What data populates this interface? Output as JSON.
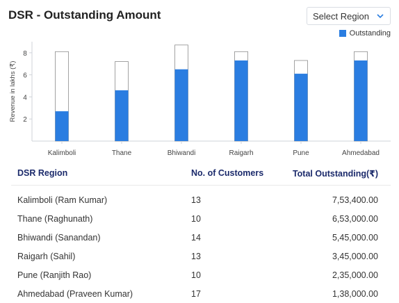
{
  "header": {
    "title": "DSR - Outstanding Amount"
  },
  "region_select": {
    "label": "Select Region"
  },
  "legend": {
    "label": "Outstanding",
    "color": "#2a7de1"
  },
  "chart_data": {
    "type": "bar",
    "ylabel": "Revenue in lakhs (₹)",
    "ylim": [
      0,
      9
    ],
    "yticks": [
      2,
      4,
      6,
      8
    ],
    "categories": [
      "Kalimboli",
      "Thane",
      "Bhiwandi",
      "Raigarh",
      "Pune",
      "Ahmedabad"
    ],
    "series": [
      {
        "name": "Outstanding",
        "color": "#2a7de1",
        "values": [
          2.7,
          4.6,
          6.5,
          7.3,
          6.1,
          7.3
        ]
      },
      {
        "color": "#ffffff",
        "values": [
          8.1,
          7.2,
          8.7,
          8.1,
          7.3,
          8.1
        ]
      }
    ]
  },
  "table": {
    "headers": [
      "DSR Region",
      "No. of Customers",
      "Total Outstanding(₹)"
    ],
    "rows": [
      [
        "Kalimboli (Ram Kumar)",
        "13",
        "7,53,400.00"
      ],
      [
        "Thane (Raghunath)",
        "10",
        "6,53,000.00"
      ],
      [
        "Bhiwandi (Sanandan)",
        "14",
        "5,45,000.00"
      ],
      [
        "Raigarh (Sahil)",
        "13",
        "3,45,000.00"
      ],
      [
        "Pune (Ranjith Rao)",
        "10",
        "2,35,000.00"
      ],
      [
        "Ahmedabad (Praveen Kumar)",
        "17",
        "1,38,000.00"
      ]
    ]
  }
}
